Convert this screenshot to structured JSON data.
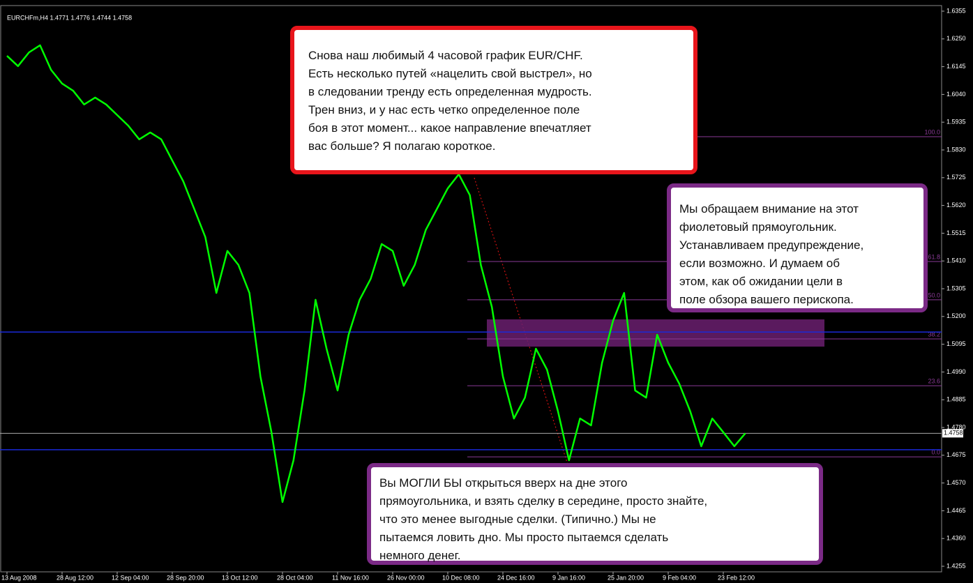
{
  "chart_data": {
    "type": "line",
    "title": "EURCHFm,H4  1.4771 1.4776 1.4744 1.4758",
    "categories": [
      "13 Aug 2008",
      null,
      null,
      null,
      null,
      "28 Aug 12:00",
      null,
      null,
      null,
      null,
      "12 Sep 04:00",
      null,
      null,
      null,
      null,
      "28 Sep 20:00",
      null,
      null,
      null,
      null,
      "13 Oct 12:00",
      null,
      null,
      null,
      null,
      "28 Oct 04:00",
      null,
      null,
      null,
      null,
      "11 Nov 16:00",
      null,
      null,
      null,
      null,
      "26 Nov 00:00",
      null,
      null,
      null,
      null,
      "10 Dec 08:00",
      null,
      null,
      null,
      null,
      "24 Dec 16:00",
      null,
      null,
      null,
      null,
      "9 Jan 16:00",
      null,
      null,
      null,
      null,
      "25 Jan 20:00",
      null,
      null,
      null,
      null,
      "9 Feb 04:00",
      null,
      null,
      null,
      null,
      "23 Feb 12:00",
      null,
      null
    ],
    "series": [
      {
        "name": "EURCHFm",
        "color": "#00ff00",
        "values": [
          1.6186,
          1.6147,
          1.6199,
          1.6226,
          1.6133,
          1.6081,
          1.6054,
          1.6002,
          1.6028,
          1.6002,
          1.5962,
          1.5922,
          1.587,
          1.5896,
          1.587,
          1.579,
          1.5711,
          1.5606,
          1.55,
          1.5289,
          1.5448,
          1.5395,
          1.5289,
          1.4973,
          1.4762,
          1.4498,
          1.4656,
          1.492,
          1.5263,
          1.5078,
          1.492,
          1.5131,
          1.5263,
          1.5342,
          1.5474,
          1.5448,
          1.5316,
          1.5395,
          1.5527,
          1.5606,
          1.5685,
          1.5738,
          1.5659,
          1.5395,
          1.5236,
          1.4973,
          1.4814,
          1.4893,
          1.5078,
          1.4999,
          1.4841,
          1.4656,
          1.4814,
          1.4788,
          1.5025,
          1.5184,
          1.5289,
          1.492,
          1.4893,
          1.5131,
          1.5025,
          1.4946,
          1.4841,
          1.4709,
          1.4814,
          1.4762,
          1.4709,
          1.4758
        ]
      }
    ],
    "ylim": [
      1.4255,
      1.6355
    ],
    "yticks": [
      1.6355,
      {
        "value": 1.625,
        "label": "1.6250"
      },
      1.6145,
      {
        "value": 1.604,
        "label": "1.6040"
      },
      1.5935,
      {
        "value": 1.583,
        "label": "1.5830"
      },
      1.5725,
      {
        "value": 1.562,
        "label": "1.5620"
      },
      1.5515,
      {
        "value": 1.541,
        "label": "1.5410"
      },
      1.5305,
      {
        "value": 1.52,
        "label": "1.5200"
      },
      1.5095,
      {
        "value": 1.499,
        "label": "1.4990"
      },
      1.4885,
      {
        "value": 1.478,
        "label": "1.4780"
      },
      1.4675,
      {
        "value": 1.457,
        "label": "1.4570"
      },
      1.4465,
      {
        "value": 1.436,
        "label": "1.4360"
      },
      1.4255
    ],
    "current_price": 1.4758,
    "blue_levels": [
      1.5141,
      1.4696
    ],
    "fib_levels": [
      {
        "value": 1.588,
        "label": "100.0"
      },
      {
        "value": 1.5408,
        "label": "61.8"
      },
      {
        "value": 1.5263,
        "label": "50.0"
      },
      {
        "value": 1.5115,
        "label": "38.2"
      },
      {
        "value": 1.4938,
        "label": "23.6"
      },
      {
        "value": 1.4669,
        "label": "0.0"
      }
    ],
    "zone": {
      "low": 1.5086,
      "high": 1.5189
    },
    "annotations": [
      {
        "lines": [
          "Снова наш любимый 4 часовой график EUR/CHF.",
          "Есть несколько путей «нацелить свой выстрел», но",
          "в следовании тренду есть определенная мудрость.",
          "Трен вниз, и у нас есть четко определенное поле",
          "боя в этот момент...  какое направление впечатляет",
          "вас больше? Я полагаю короткое."
        ]
      },
      {
        "lines": [
          "Мы обращаем внимание на этот",
          "фиолетовый прямоугольник.",
          "Устанавливаем предупреждение,",
          "если возможно. И думаем об",
          "этом, как об ожидании цели в",
          "поле обзора вашего перископа."
        ]
      },
      {
        "lines": [
          "Вы МОГЛИ БЫ открыться вверх на дне этого",
          "прямоугольника, и взять сделку в середине, просто знайте,",
          "что это менее выгодные сделки. (Типично.) Мы не",
          "пытаемся ловить дно. Мы просто пытаемся сделать",
          "немного денег."
        ]
      }
    ]
  }
}
